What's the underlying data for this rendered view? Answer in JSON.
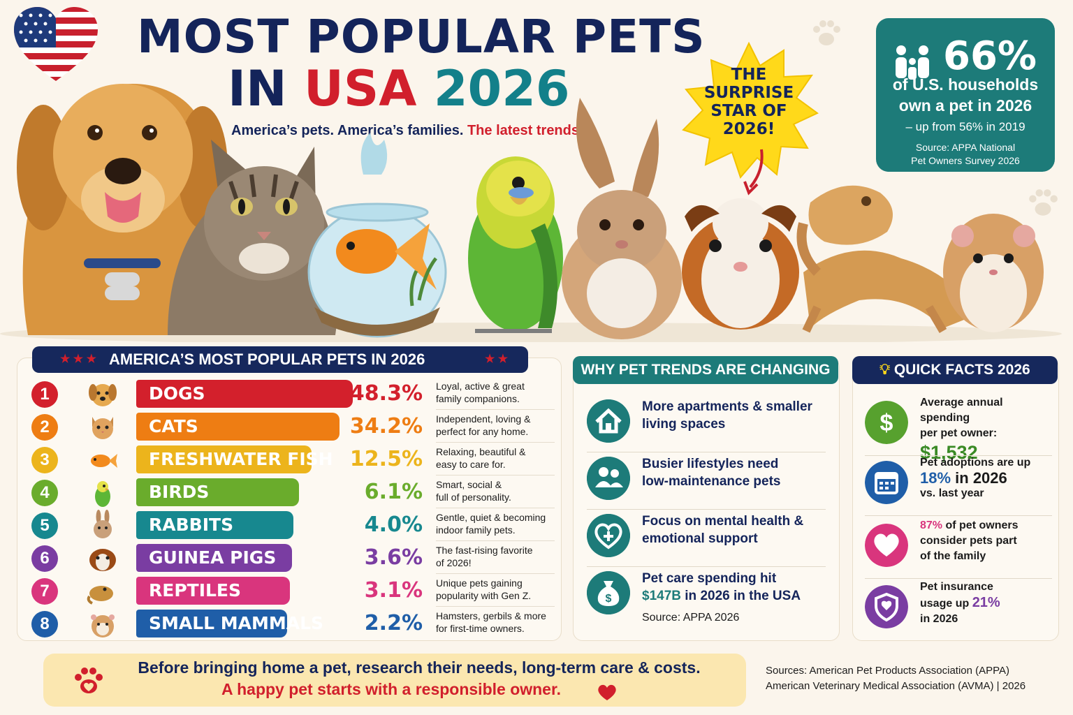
{
  "header": {
    "title_line1": "MOST POPULAR PETS",
    "title_line2_a": "IN ",
    "title_line2_b": "USA ",
    "title_line2_c": "2026",
    "subtitle_a": "America’s pets. America’s families. ",
    "subtitle_b": "The latest trends."
  },
  "starburst": {
    "text": [
      "THE",
      "SURPRISE",
      "STAR OF",
      "2026!"
    ]
  },
  "households": {
    "percent": "66%",
    "line1": "of U.S. households",
    "line2": "own a pet in 2026",
    "line3": "– up from 56% in 2019",
    "source_line1": "Source: APPA National",
    "source_line2": "Pet Owners Survey 2026"
  },
  "pets_panel": {
    "title": "AMERICA’S MOST POPULAR PETS IN 2026",
    "rows": [
      {
        "rank": "1",
        "name": "DOGS",
        "percent": "48.3%",
        "value": 48.3,
        "color": "#d3202c",
        "icon": "dog-icon",
        "desc1": "Loyal, active & great",
        "desc2": "family companions."
      },
      {
        "rank": "2",
        "name": "CATS",
        "percent": "34.2%",
        "value": 34.2,
        "color": "#ee7d13",
        "icon": "cat-icon",
        "desc1": "Independent, loving &",
        "desc2": "perfect for any home."
      },
      {
        "rank": "3",
        "name": "FRESHWATER FISH",
        "percent": "12.5%",
        "value": 12.5,
        "color": "#ecb41c",
        "icon": "fish-icon",
        "desc1": "Relaxing, beautiful &",
        "desc2": "easy to care for."
      },
      {
        "rank": "4",
        "name": "BIRDS",
        "percent": "6.1%",
        "value": 6.1,
        "color": "#6aac2c",
        "icon": "bird-icon",
        "desc1": "Smart, social &",
        "desc2": "full of personality."
      },
      {
        "rank": "5",
        "name": "RABBITS",
        "percent": "4.0%",
        "value": 4.0,
        "color": "#17888f",
        "icon": "rabbit-icon",
        "desc1": "Gentle, quiet & becoming",
        "desc2": "indoor family pets."
      },
      {
        "rank": "6",
        "name": "GUINEA PIGS",
        "percent": "3.6%",
        "value": 3.6,
        "color": "#7a3da2",
        "icon": "guinea-pig-icon",
        "desc1": "The fast-rising favorite",
        "desc2": "of 2026!"
      },
      {
        "rank": "7",
        "name": "REPTILES",
        "percent": "3.1%",
        "value": 3.1,
        "color": "#d9357d",
        "icon": "reptile-icon",
        "desc1": "Unique pets gaining",
        "desc2": "popularity with Gen Z."
      },
      {
        "rank": "8",
        "name": "SMALL MAMMALS",
        "percent": "2.2%",
        "value": 2.2,
        "color": "#1f5ea8",
        "icon": "hamster-icon",
        "desc1": "Hamsters, gerbils & more",
        "desc2": "for first-time owners."
      }
    ]
  },
  "why_panel": {
    "title": "WHY PET TRENDS ARE CHANGING",
    "items": [
      {
        "icon": "house-icon",
        "line1": "More apartments & smaller",
        "line2": "living spaces"
      },
      {
        "icon": "people-icon",
        "line1": "Busier lifestyles need",
        "line2": "low-maintenance pets"
      },
      {
        "icon": "heart-plus-icon",
        "line1": "Focus on mental health &",
        "line2": "emotional support"
      },
      {
        "icon": "money-bag-icon",
        "line1": "Pet care spending hit",
        "line2a": "$147B",
        "line2b": " in 2026 in the USA",
        "source": "Source: APPA 2026"
      }
    ]
  },
  "facts_panel": {
    "title": "QUICK FACTS 2026",
    "facts": [
      {
        "icon": "dollar-icon",
        "color": "#57a12e",
        "a": "Average annual spending",
        "b": "per pet owner:",
        "highlight": "$1,532",
        "highlight_color": "#3a8a25"
      },
      {
        "icon": "calendar-icon",
        "color": "#1f5ea8",
        "a": "Pet adoptions are up",
        "highlight": "18%",
        "b": " in 2026",
        "c": "vs. last year",
        "highlight_color": "#1f5ea8"
      },
      {
        "icon": "heart-icon",
        "color": "#d9357d",
        "highlight": "87%",
        "a": " of pet owners",
        "b": "consider pets part",
        "c": "of the family",
        "highlight_color": "#d9357d"
      },
      {
        "icon": "shield-icon",
        "color": "#7a3da2",
        "a": "Pet insurance",
        "b": "usage up ",
        "highlight": "21%",
        "c": "in 2026",
        "highlight_color": "#7a3da2"
      }
    ]
  },
  "footer": {
    "line1": "Before bringing home a pet, research their needs, long-term care & costs.",
    "line2": "A happy pet starts with a responsible owner.",
    "sources_line1": "Sources: American Pet Products Association (APPA)",
    "sources_line2": "American Veterinary Medical Association (AVMA)  |  2026"
  },
  "colors": {
    "navy": "#14245a",
    "red": "#d11f2c",
    "teal": "#1d7b79"
  }
}
